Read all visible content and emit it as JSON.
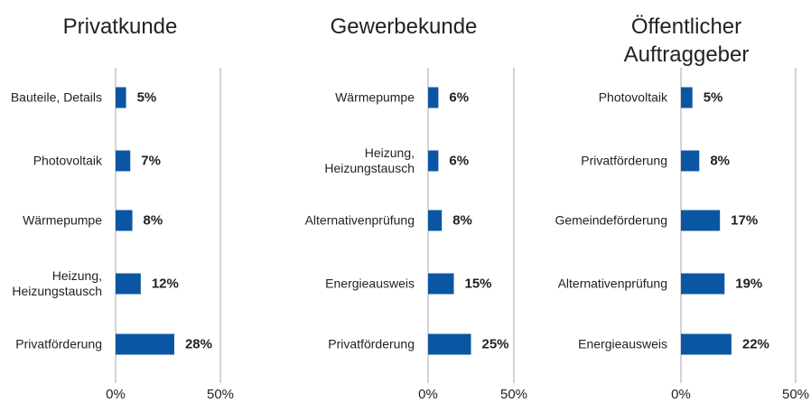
{
  "chart_data": [
    {
      "type": "barh",
      "title": "Privatkunde",
      "categories": [
        "Bauteile, Details",
        "Photovoltaik",
        "Wärmepumpe",
        "Heizung, Heizungstausch",
        "Privatförderung"
      ],
      "values": [
        5,
        7,
        8,
        12,
        28
      ],
      "value_labels": [
        "5%",
        "7%",
        "8%",
        "12%",
        "28%"
      ],
      "color": "#0b56a3",
      "xlim": [
        0,
        50
      ],
      "xticks": [
        {
          "value": 0,
          "label": "0%"
        },
        {
          "value": 50,
          "label": "50%"
        }
      ],
      "grid": true
    },
    {
      "type": "barh",
      "title": "Gewerbekunde",
      "categories": [
        "Wärmepumpe",
        "Heizung, Heizungstausch",
        "Alternativenprüfung",
        "Energieausweis",
        "Privatförderung"
      ],
      "values": [
        6,
        6,
        8,
        15,
        25
      ],
      "value_labels": [
        "6%",
        "6%",
        "8%",
        "15%",
        "25%"
      ],
      "color": "#0b56a3",
      "xlim": [
        0,
        50
      ],
      "xticks": [
        {
          "value": 0,
          "label": "0%"
        },
        {
          "value": 50,
          "label": "50%"
        }
      ],
      "grid": true
    },
    {
      "type": "barh",
      "title": "Öffentlicher Auftraggeber",
      "categories": [
        "Photovoltaik",
        "Privatförderung",
        "Gemeindeförderung",
        "Alternativenprüfung",
        "Energieausweis"
      ],
      "values": [
        5,
        8,
        17,
        19,
        22
      ],
      "value_labels": [
        "5%",
        "8%",
        "17%",
        "19%",
        "22%"
      ],
      "color": "#0b56a3",
      "xlim": [
        0,
        50
      ],
      "xticks": [
        {
          "value": 0,
          "label": "0%"
        },
        {
          "value": 50,
          "label": "50%"
        }
      ],
      "grid": true
    }
  ]
}
